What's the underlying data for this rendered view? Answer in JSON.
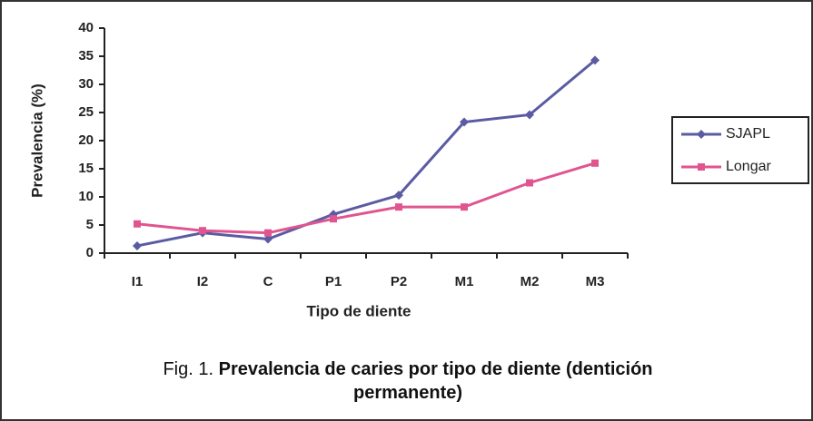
{
  "chart_data": {
    "type": "line",
    "categories": [
      "I1",
      "I2",
      "C",
      "P1",
      "P2",
      "M1",
      "M2",
      "M3"
    ],
    "series": [
      {
        "name": "SJAPL",
        "color": "#5b5ba3",
        "marker": "diamond",
        "values": [
          1.3,
          3.6,
          2.5,
          6.9,
          10.3,
          23.3,
          24.6,
          34.3
        ]
      },
      {
        "name": "Longar",
        "color": "#e0558f",
        "marker": "square",
        "values": [
          5.2,
          4.0,
          3.6,
          6.1,
          8.2,
          8.2,
          12.5,
          16.0
        ]
      }
    ],
    "ylim": [
      0,
      40
    ],
    "yticks": [
      0,
      5,
      10,
      15,
      20,
      25,
      30,
      35,
      40
    ],
    "ylabel": "Prevalencia (%)",
    "xlabel": "Tipo de diente",
    "grid": false,
    "legend": "right",
    "caption_label": "Fig. 1.",
    "title": "Prevalencia de caries por tipo de diente (dentición permanente)"
  }
}
